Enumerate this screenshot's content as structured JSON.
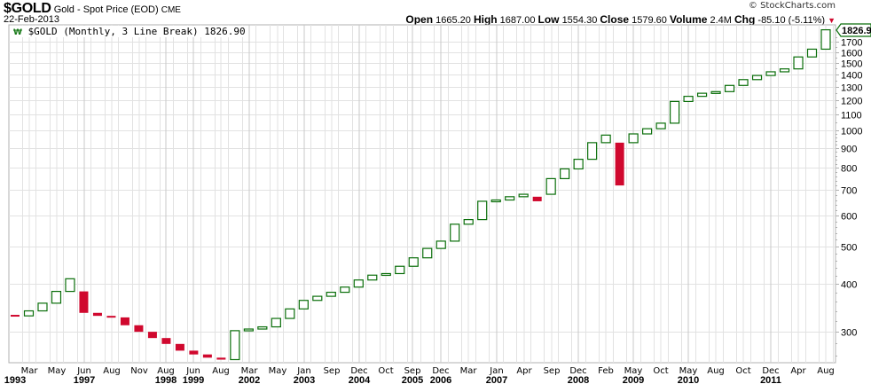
{
  "header": {
    "symbol": "$GOLD",
    "name": "Gold - Spot Price (EOD)",
    "exchange": "CME",
    "date": "22-Feb-2013",
    "copyright": "© StockCharts.com",
    "ohlc": {
      "open_label": "Open",
      "open": "1665.20",
      "high_label": "High",
      "high": "1687.00",
      "low_label": "Low",
      "low": "1554.30",
      "close_label": "Close",
      "close": "1579.60",
      "volume_label": "Volume",
      "volume": "2.4M",
      "chg_label": "Chg",
      "chg": "-85.10 (-5.11%)"
    }
  },
  "legend": {
    "icon": "3-line-break-icon",
    "text": "$GOLD (Monthly, 3 Line Break) 1826.90"
  },
  "colors": {
    "up": "#0a6e0a",
    "down": "#d0082e",
    "grid": "#e2e2e2",
    "grid_major": "#c8c8c8",
    "axis": "#b0b0b0"
  },
  "chart_data": {
    "type": "bar",
    "subtype": "3-line-break",
    "title": "$GOLD (Monthly, 3 Line Break) 1826.90",
    "xlabel": "",
    "ylabel": "",
    "yscale": "log",
    "ylim": [
      250,
      1850
    ],
    "grid": true,
    "last_value": "1826.90",
    "y_ticks": [
      300,
      400,
      500,
      600,
      700,
      800,
      900,
      1000,
      1100,
      1200,
      1300,
      1400,
      1500,
      1600,
      1700
    ],
    "x_tick_labels": [
      {
        "month": "",
        "year": "1993"
      },
      {
        "month": "Mar",
        "year": ""
      },
      {
        "month": "May",
        "year": ""
      },
      {
        "month": "Jun",
        "year": "1997"
      },
      {
        "month": "Aug",
        "year": ""
      },
      {
        "month": "Nov",
        "year": ""
      },
      {
        "month": "Aug",
        "year": "1998"
      },
      {
        "month": "Jun",
        "year": "1999"
      },
      {
        "month": "Aug",
        "year": ""
      },
      {
        "month": "Mar",
        "year": "2002"
      },
      {
        "month": "May",
        "year": ""
      },
      {
        "month": "Jan",
        "year": "2003"
      },
      {
        "month": "Sep",
        "year": ""
      },
      {
        "month": "Dec",
        "year": "2004"
      },
      {
        "month": "Oct",
        "year": ""
      },
      {
        "month": "Sep",
        "year": "2005"
      },
      {
        "month": "Dec",
        "year": "2006"
      },
      {
        "month": "Mar",
        "year": ""
      },
      {
        "month": "Jan",
        "year": "2007"
      },
      {
        "month": "Apr",
        "year": ""
      },
      {
        "month": "Sep",
        "year": ""
      },
      {
        "month": "Dec",
        "year": "2008"
      },
      {
        "month": "Feb",
        "year": ""
      },
      {
        "month": "May",
        "year": "2009"
      },
      {
        "month": "Oct",
        "year": ""
      },
      {
        "month": "May",
        "year": "2010"
      },
      {
        "month": "Aug",
        "year": ""
      },
      {
        "month": "Oct",
        "year": ""
      },
      {
        "month": "Dec",
        "year": "2011"
      },
      {
        "month": "Apr",
        "year": ""
      },
      {
        "month": "Aug",
        "year": ""
      }
    ],
    "bricks": [
      {
        "dir": "down",
        "open": 332,
        "close": 330
      },
      {
        "dir": "up",
        "open": 330,
        "close": 340
      },
      {
        "dir": "up",
        "open": 340,
        "close": 356
      },
      {
        "dir": "up",
        "open": 356,
        "close": 382
      },
      {
        "dir": "up",
        "open": 382,
        "close": 412
      },
      {
        "dir": "down",
        "open": 382,
        "close": 336
      },
      {
        "dir": "down",
        "open": 336,
        "close": 330
      },
      {
        "dir": "down",
        "open": 330,
        "close": 327
      },
      {
        "dir": "down",
        "open": 327,
        "close": 312
      },
      {
        "dir": "down",
        "open": 312,
        "close": 300
      },
      {
        "dir": "down",
        "open": 300,
        "close": 289
      },
      {
        "dir": "down",
        "open": 289,
        "close": 279
      },
      {
        "dir": "down",
        "open": 279,
        "close": 268
      },
      {
        "dir": "down",
        "open": 268,
        "close": 262
      },
      {
        "dir": "down",
        "open": 262,
        "close": 257
      },
      {
        "dir": "down",
        "open": 257,
        "close": 254
      },
      {
        "dir": "up",
        "open": 254,
        "close": 302
      },
      {
        "dir": "up",
        "open": 302,
        "close": 305
      },
      {
        "dir": "up",
        "open": 305,
        "close": 309
      },
      {
        "dir": "up",
        "open": 309,
        "close": 325
      },
      {
        "dir": "up",
        "open": 325,
        "close": 344
      },
      {
        "dir": "up",
        "open": 344,
        "close": 362
      },
      {
        "dir": "up",
        "open": 362,
        "close": 371
      },
      {
        "dir": "up",
        "open": 371,
        "close": 380
      },
      {
        "dir": "up",
        "open": 380,
        "close": 392
      },
      {
        "dir": "up",
        "open": 392,
        "close": 409
      },
      {
        "dir": "up",
        "open": 409,
        "close": 421
      },
      {
        "dir": "up",
        "open": 421,
        "close": 425
      },
      {
        "dir": "up",
        "open": 425,
        "close": 444
      },
      {
        "dir": "up",
        "open": 444,
        "close": 467
      },
      {
        "dir": "up",
        "open": 467,
        "close": 494
      },
      {
        "dir": "up",
        "open": 494,
        "close": 516
      },
      {
        "dir": "up",
        "open": 516,
        "close": 571
      },
      {
        "dir": "up",
        "open": 571,
        "close": 587
      },
      {
        "dir": "up",
        "open": 587,
        "close": 655
      },
      {
        "dir": "up",
        "open": 655,
        "close": 660
      },
      {
        "dir": "up",
        "open": 660,
        "close": 673
      },
      {
        "dir": "up",
        "open": 673,
        "close": 683
      },
      {
        "dir": "down",
        "open": 673,
        "close": 655
      },
      {
        "dir": "up",
        "open": 683,
        "close": 750
      },
      {
        "dir": "up",
        "open": 750,
        "close": 795
      },
      {
        "dir": "up",
        "open": 795,
        "close": 842
      },
      {
        "dir": "up",
        "open": 842,
        "close": 930
      },
      {
        "dir": "up",
        "open": 930,
        "close": 973
      },
      {
        "dir": "down",
        "open": 930,
        "close": 720
      },
      {
        "dir": "up",
        "open": 930,
        "close": 980
      },
      {
        "dir": "up",
        "open": 980,
        "close": 1011
      },
      {
        "dir": "up",
        "open": 1011,
        "close": 1045
      },
      {
        "dir": "up",
        "open": 1045,
        "close": 1190
      },
      {
        "dir": "up",
        "open": 1190,
        "close": 1227
      },
      {
        "dir": "up",
        "open": 1227,
        "close": 1250
      },
      {
        "dir": "up",
        "open": 1250,
        "close": 1262
      },
      {
        "dir": "up",
        "open": 1262,
        "close": 1310
      },
      {
        "dir": "up",
        "open": 1310,
        "close": 1356
      },
      {
        "dir": "up",
        "open": 1356,
        "close": 1390
      },
      {
        "dir": "up",
        "open": 1390,
        "close": 1421
      },
      {
        "dir": "up",
        "open": 1421,
        "close": 1446
      },
      {
        "dir": "up",
        "open": 1446,
        "close": 1553
      },
      {
        "dir": "up",
        "open": 1553,
        "close": 1627
      },
      {
        "dir": "up",
        "open": 1627,
        "close": 1826.9
      }
    ]
  }
}
